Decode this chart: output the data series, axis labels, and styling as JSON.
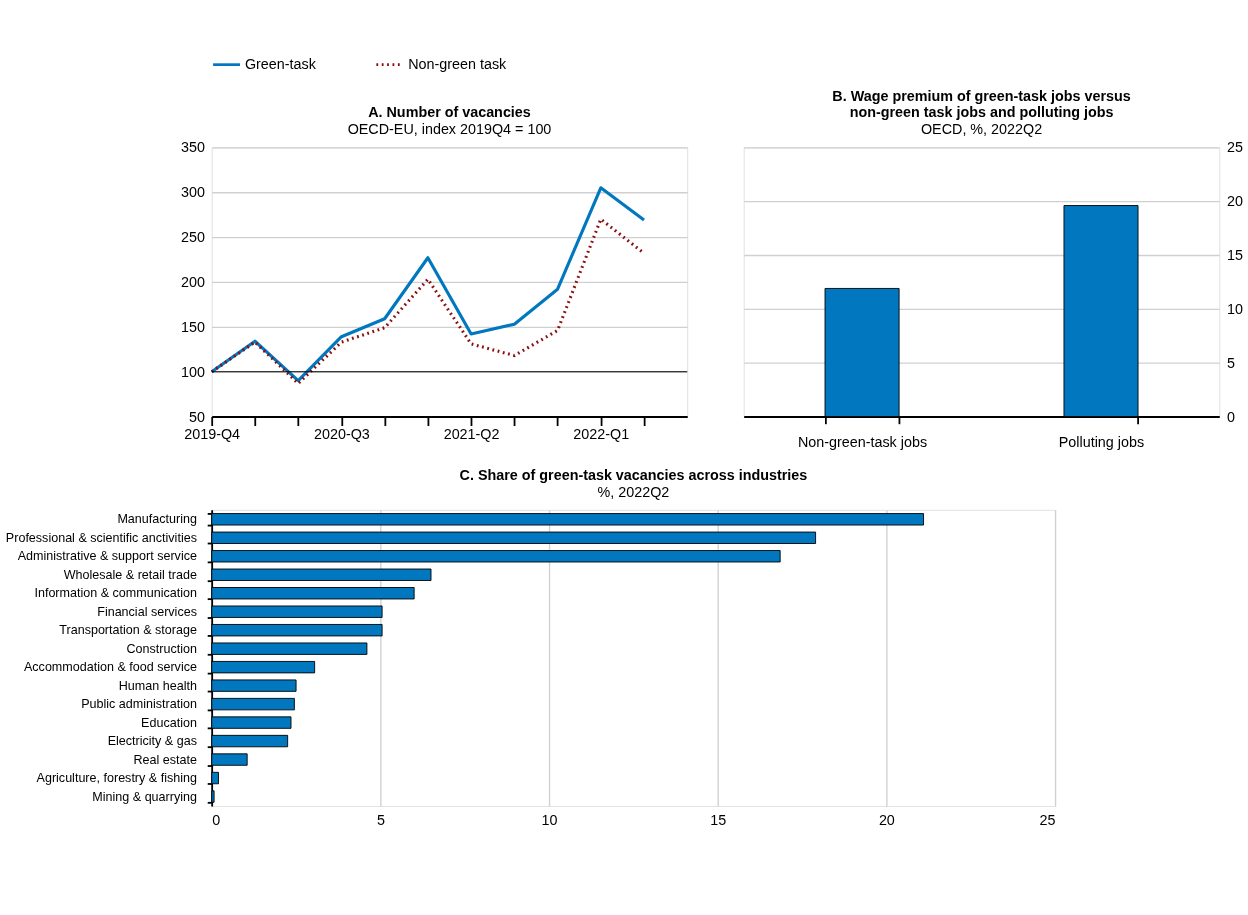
{
  "chart_data": [
    {
      "type": "line",
      "title": "A. Number of vacancies",
      "subtitle": "OECD-EU, index 2019Q4 = 100",
      "categories": [
        "2019-Q4",
        null,
        null,
        "2020-Q3",
        null,
        null,
        "2021-Q2",
        null,
        null,
        "2022-Q1",
        null
      ],
      "series": [
        {
          "name": "Green-task",
          "color": "#0077bf",
          "line_style": "solid",
          "values": [
            100,
            134,
            90,
            139,
            159,
            227,
            142,
            153,
            192,
            305,
            269
          ]
        },
        {
          "name": "Non-green task",
          "color": "#8b0f0f",
          "line_style": "dotted",
          "values": [
            100,
            133,
            87,
            133,
            149,
            203,
            131,
            118,
            146,
            270,
            232
          ]
        }
      ],
      "ylim": [
        50,
        350
      ],
      "yticks": [
        50,
        100,
        150,
        200,
        250,
        300,
        350
      ],
      "grid": "y",
      "legend": "top",
      "ref_lines": [
        {
          "axis": "y",
          "value": 100,
          "color": "#000000"
        }
      ]
    },
    {
      "type": "bar",
      "title": "B. Wage premium of green-task jobs versus\nnon-green task jobs and polluting jobs",
      "subtitle": "OECD, %, 2022Q2",
      "categories": [
        "Non-green-task jobs",
        "Polluting jobs"
      ],
      "values": [
        11.9,
        19.6
      ],
      "color": "#0077bf",
      "ylim": [
        0,
        25
      ],
      "yticks": [
        0,
        5,
        10,
        15,
        20,
        25
      ],
      "grid": "y"
    },
    {
      "type": "bar",
      "orientation": "horizontal",
      "title": "C. Share of green-task vacancies across industries",
      "subtitle": "%, 2022Q2",
      "categories": [
        "Manufacturing",
        "Professional & scientific anctivities",
        "Administrative & support service",
        "Wholesale & retail trade",
        "Information & communication",
        "Financial services",
        "Transportation & storage",
        "Construction",
        "Accommodation & food service",
        "Human health",
        "Public administration",
        "Education",
        "Electricity & gas",
        "Real estate",
        "Agriculture, forestry & fishing",
        "Mining & quarrying"
      ],
      "values": [
        21.1,
        17.9,
        16.85,
        6.5,
        6.0,
        5.05,
        5.05,
        4.6,
        3.05,
        2.5,
        2.45,
        2.35,
        2.25,
        1.05,
        0.2,
        0.07
      ],
      "color": "#0077bf",
      "xlim": [
        0,
        25
      ],
      "xticks": [
        0,
        5,
        10,
        15,
        20,
        25
      ],
      "grid": "x"
    }
  ]
}
